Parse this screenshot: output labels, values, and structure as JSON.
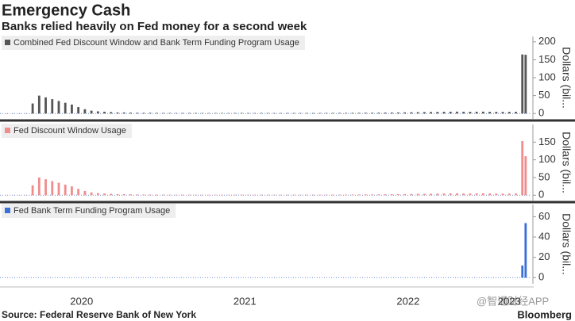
{
  "title": "Emergency Cash",
  "subtitle": "Banks relied heavily on Fed money for a second week",
  "source": "Source: Federal Reserve Bank of New York",
  "brand": "Bloomberg",
  "watermark": "@智通财经APP",
  "chart_data": [
    {
      "type": "bar",
      "x": [
        2020,
        2020.04,
        2020.08,
        2020.12,
        2020.16,
        2020.2,
        2020.24,
        2020.28,
        2020.32,
        2020.36,
        2020.4,
        2020.44,
        2020.48,
        2020.52,
        2020.56,
        2020.6,
        2020.64,
        2020.68,
        2020.72,
        2020.76,
        2020.8,
        2020.84,
        2020.88,
        2020.92,
        2020.96,
        2021,
        2021.04,
        2021.08,
        2021.12,
        2021.16,
        2021.2,
        2021.24,
        2021.28,
        2021.32,
        2021.36,
        2021.4,
        2021.44,
        2021.48,
        2021.52,
        2021.56,
        2021.6,
        2021.64,
        2021.68,
        2021.72,
        2021.76,
        2021.8,
        2021.84,
        2021.88,
        2021.92,
        2021.96,
        2022,
        2022.04,
        2022.08,
        2022.12,
        2022.16,
        2022.2,
        2022.24,
        2022.28,
        2022.32,
        2022.36,
        2022.4,
        2022.44,
        2022.48,
        2022.52,
        2022.56,
        2022.6,
        2022.64,
        2022.68,
        2022.72,
        2022.76,
        2022.8,
        2022.84,
        2022.88,
        2022.92,
        2022.96,
        2023,
        2023.04,
        2023.08,
        2023.12,
        2023.16,
        2023.2,
        2023.22
      ],
      "series": [
        {
          "name": "Combined Fed Discount Window and Bank Term Funding Program Usage",
          "color": "#555555",
          "values": [
            0.6,
            0.5,
            0.5,
            0.6,
            0.7,
            28,
            50,
            45,
            40,
            35,
            30,
            25,
            18,
            12,
            8,
            6,
            5,
            4,
            3,
            3,
            2.5,
            2,
            2,
            2,
            1.8,
            1.5,
            1.5,
            1.4,
            1.5,
            1.6,
            1.5,
            1.4,
            1.3,
            1.5,
            1.5,
            1.4,
            1.5,
            1.6,
            1.5,
            1.4,
            1.5,
            1.5,
            1.4,
            1.3,
            1.5,
            1.6,
            1.5,
            1.4,
            1.5,
            1.5,
            1.6,
            1.7,
            1.8,
            1.8,
            2,
            2,
            2.2,
            2.3,
            2.5,
            2.6,
            2.8,
            3,
            3.2,
            3.5,
            3.8,
            4,
            4.2,
            4.5,
            4.8,
            5,
            5.2,
            5,
            4.8,
            5,
            5.2,
            4.8,
            4.6,
            4.5,
            4.6,
            4.8,
            164.8,
            163.9
          ]
        }
      ],
      "xlim": [
        2020,
        2023.25
      ],
      "ylim": [
        -15,
        215
      ],
      "yticks": [
        0,
        50,
        100,
        150,
        200
      ],
      "y_label": "Dollars (bil..."
    },
    {
      "type": "bar",
      "x": [
        2020,
        2020.04,
        2020.08,
        2020.12,
        2020.16,
        2020.2,
        2020.24,
        2020.28,
        2020.32,
        2020.36,
        2020.4,
        2020.44,
        2020.48,
        2020.52,
        2020.56,
        2020.6,
        2020.64,
        2020.68,
        2020.72,
        2020.76,
        2020.8,
        2020.84,
        2020.88,
        2020.92,
        2020.96,
        2021,
        2021.04,
        2021.08,
        2021.12,
        2021.16,
        2021.2,
        2021.24,
        2021.28,
        2021.32,
        2021.36,
        2021.4,
        2021.44,
        2021.48,
        2021.52,
        2021.56,
        2021.6,
        2021.64,
        2021.68,
        2021.72,
        2021.76,
        2021.8,
        2021.84,
        2021.88,
        2021.92,
        2021.96,
        2022,
        2022.04,
        2022.08,
        2022.12,
        2022.16,
        2022.2,
        2022.24,
        2022.28,
        2022.32,
        2022.36,
        2022.4,
        2022.44,
        2022.48,
        2022.52,
        2022.56,
        2022.6,
        2022.64,
        2022.68,
        2022.72,
        2022.76,
        2022.8,
        2022.84,
        2022.88,
        2022.92,
        2022.96,
        2023,
        2023.04,
        2023.08,
        2023.12,
        2023.16,
        2023.2,
        2023.22
      ],
      "series": [
        {
          "name": "Fed Discount Window Usage",
          "color": "#f08c8c",
          "values": [
            0.6,
            0.5,
            0.5,
            0.6,
            0.7,
            28,
            50,
            45,
            40,
            35,
            30,
            25,
            18,
            12,
            8,
            6,
            5,
            4,
            3,
            3,
            2.5,
            2,
            2,
            2,
            1.8,
            1.5,
            1.5,
            1.4,
            1.5,
            1.6,
            1.5,
            1.4,
            1.3,
            1.5,
            1.5,
            1.4,
            1.5,
            1.6,
            1.5,
            1.4,
            1.5,
            1.5,
            1.4,
            1.3,
            1.5,
            1.6,
            1.5,
            1.4,
            1.5,
            1.5,
            1.6,
            1.7,
            1.8,
            1.8,
            2,
            2,
            2.2,
            2.3,
            2.5,
            2.6,
            2.8,
            3,
            3.2,
            3.5,
            3.8,
            4,
            4.2,
            4.5,
            4.8,
            5,
            5.2,
            5,
            4.8,
            5,
            5.2,
            4.8,
            4.6,
            4.5,
            4.6,
            4.8,
            152.9,
            110.2
          ]
        }
      ],
      "xlim": [
        2020,
        2023.25
      ],
      "ylim": [
        -15,
        200
      ],
      "yticks": [
        0,
        50,
        100,
        150
      ],
      "y_label": "Dollars (bil..."
    },
    {
      "type": "bar",
      "x": [
        2023.2,
        2023.22
      ],
      "series": [
        {
          "name": "Fed Bank Term Funding Program Usage",
          "color": "#3a6fd8",
          "values": [
            11.9,
            53.7
          ]
        }
      ],
      "xlim": [
        2020,
        2023.25
      ],
      "xticks": [
        {
          "value": 2020.5,
          "label": "2020"
        },
        {
          "value": 2021.5,
          "label": "2021"
        },
        {
          "value": 2022.5,
          "label": "2022"
        },
        {
          "value": 2023.12,
          "label": "2023"
        }
      ],
      "ylim": [
        -6,
        72
      ],
      "yticks": [
        0,
        20,
        40,
        60
      ],
      "y_label": "Dollars (bil..."
    }
  ]
}
